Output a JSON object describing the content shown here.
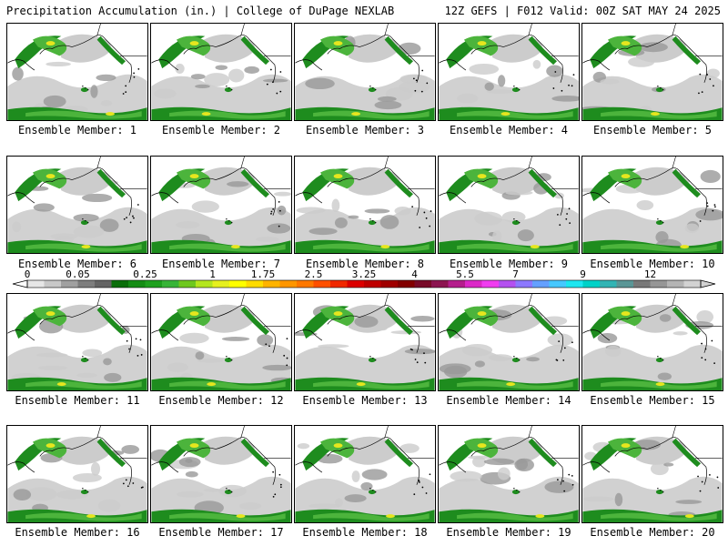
{
  "header": {
    "left": "Precipitation Accumulation (in.) | College of DuPage NEXLAB",
    "right": "12Z GEFS | F012 Valid: 00Z SAT MAY 24 2025"
  },
  "members": [
    "Ensemble Member: 1",
    "Ensemble Member: 2",
    "Ensemble Member: 3",
    "Ensemble Member: 4",
    "Ensemble Member: 5",
    "Ensemble Member: 6",
    "Ensemble Member: 7",
    "Ensemble Member: 8",
    "Ensemble Member: 9",
    "Ensemble Member: 10",
    "Ensemble Member: 11",
    "Ensemble Member: 12",
    "Ensemble Member: 13",
    "Ensemble Member: 14",
    "Ensemble Member: 15",
    "Ensemble Member: 16",
    "Ensemble Member: 17",
    "Ensemble Member: 18",
    "Ensemble Member: 19",
    "Ensemble Member: 20"
  ],
  "colorbar": {
    "labels": [
      "0",
      "0.05",
      "0.25",
      "1",
      "1.75",
      "2.5",
      "3.25",
      "4",
      "5.5",
      "7",
      "9",
      "12"
    ],
    "colors": [
      "#e6e6e6",
      "#c8c8c8",
      "#a0a0a0",
      "#7d7d7d",
      "#646464",
      "#0a6e0a",
      "#148c14",
      "#1ea01e",
      "#37b437",
      "#6ec81e",
      "#b4e61e",
      "#e6f01e",
      "#ffff00",
      "#ffdc00",
      "#ffb400",
      "#ff9600",
      "#ff7800",
      "#ff5000",
      "#f02800",
      "#dc0000",
      "#be0000",
      "#a00000",
      "#820000",
      "#780a28",
      "#8c1450",
      "#b41e8c",
      "#dc28c8",
      "#f03cf0",
      "#b450f0",
      "#8c78ff",
      "#64a0ff",
      "#46c8ff",
      "#1ee6f0",
      "#00d2c8",
      "#32b4b4",
      "#5a9696",
      "#787878",
      "#969696",
      "#b4b4b4",
      "#d2d2d2"
    ]
  },
  "map_colors": {
    "light_gray": "#cccccc",
    "mid_gray": "#999999",
    "green_dark": "#1e8c1e",
    "green_light": "#4cb43c",
    "yellow": "#e6e61e",
    "coast": "#000000"
  }
}
